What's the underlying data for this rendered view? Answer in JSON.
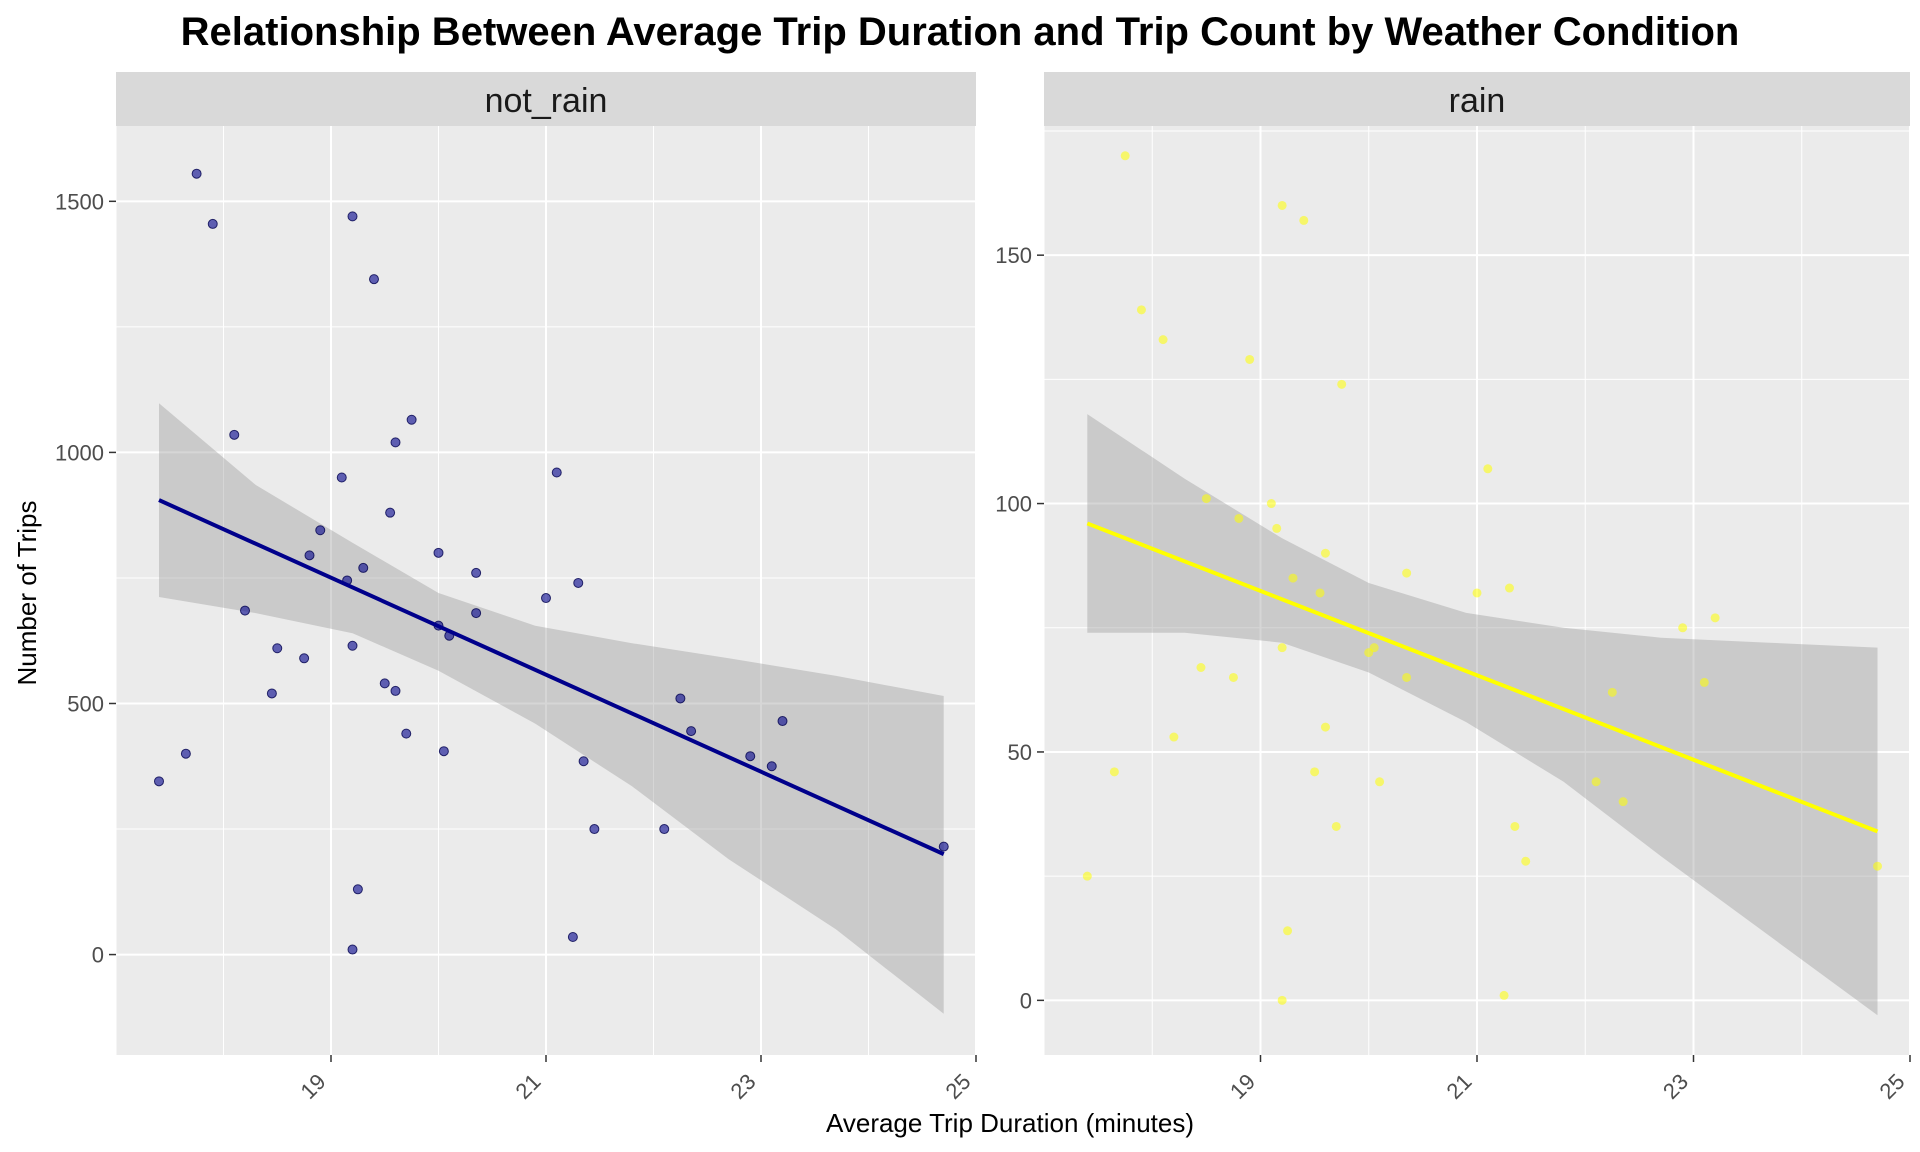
{
  "chart_data": {
    "type": "scatter",
    "title": "Relationship Between Average Trip Duration and Trip Count by Weather Condition",
    "xlabel": "Average Trip Duration (minutes)",
    "ylabel": "Number of Trips",
    "grid": true,
    "smoother": "linear fit with confidence band",
    "panels": [
      {
        "name": "not_rain",
        "color": "#00008B",
        "band_color": "#999999",
        "xlim": [
          17.0,
          25.0
        ],
        "ylim": [
          -200,
          1650
        ],
        "xticks": [
          19,
          21,
          23,
          25
        ],
        "yticks": [
          0,
          500,
          1000,
          1500
        ],
        "fit": {
          "x_start": 17.4,
          "y_start": 905,
          "x_end": 24.7,
          "y_end": 200
        },
        "band": {
          "x": [
            17.4,
            18.3,
            19.2,
            20.0,
            20.9,
            21.8,
            22.7,
            23.7,
            24.7
          ],
          "upper": [
            1098,
            935,
            820,
            720,
            655,
            620,
            590,
            555,
            515
          ],
          "lower": [
            712,
            680,
            640,
            565,
            460,
            335,
            190,
            50,
            -118
          ]
        },
        "points": [
          {
            "x": 17.4,
            "y": 345
          },
          {
            "x": 17.65,
            "y": 400
          },
          {
            "x": 17.75,
            "y": 1555
          },
          {
            "x": 17.9,
            "y": 1455
          },
          {
            "x": 18.1,
            "y": 1035
          },
          {
            "x": 18.2,
            "y": 685
          },
          {
            "x": 18.45,
            "y": 520
          },
          {
            "x": 18.5,
            "y": 610
          },
          {
            "x": 18.75,
            "y": 590
          },
          {
            "x": 18.8,
            "y": 795
          },
          {
            "x": 18.9,
            "y": 845
          },
          {
            "x": 19.1,
            "y": 950
          },
          {
            "x": 19.15,
            "y": 745
          },
          {
            "x": 19.2,
            "y": 1470
          },
          {
            "x": 19.2,
            "y": 615
          },
          {
            "x": 19.2,
            "y": 10
          },
          {
            "x": 19.25,
            "y": 130
          },
          {
            "x": 19.3,
            "y": 770
          },
          {
            "x": 19.4,
            "y": 1345
          },
          {
            "x": 19.5,
            "y": 540
          },
          {
            "x": 19.55,
            "y": 880
          },
          {
            "x": 19.6,
            "y": 1020
          },
          {
            "x": 19.6,
            "y": 525
          },
          {
            "x": 19.7,
            "y": 440
          },
          {
            "x": 19.75,
            "y": 1065
          },
          {
            "x": 20.0,
            "y": 800
          },
          {
            "x": 20.0,
            "y": 655
          },
          {
            "x": 20.05,
            "y": 405
          },
          {
            "x": 20.1,
            "y": 635
          },
          {
            "x": 20.35,
            "y": 760
          },
          {
            "x": 20.35,
            "y": 680
          },
          {
            "x": 21.0,
            "y": 710
          },
          {
            "x": 21.1,
            "y": 960
          },
          {
            "x": 21.25,
            "y": 35
          },
          {
            "x": 21.3,
            "y": 740
          },
          {
            "x": 21.35,
            "y": 385
          },
          {
            "x": 21.45,
            "y": 250
          },
          {
            "x": 22.1,
            "y": 250
          },
          {
            "x": 22.25,
            "y": 510
          },
          {
            "x": 22.35,
            "y": 445
          },
          {
            "x": 22.9,
            "y": 395
          },
          {
            "x": 23.1,
            "y": 375
          },
          {
            "x": 23.2,
            "y": 465
          },
          {
            "x": 24.7,
            "y": 215
          }
        ]
      },
      {
        "name": "rain",
        "color": "#FFFF00",
        "band_color": "#999999",
        "xlim": [
          17.0,
          25.0
        ],
        "ylim": [
          -11,
          176
        ],
        "xticks": [
          19,
          21,
          23,
          25
        ],
        "yticks": [
          0,
          50,
          100,
          150
        ],
        "fit": {
          "x_start": 17.4,
          "y_start": 96,
          "x_end": 24.7,
          "y_end": 34
        },
        "band": {
          "x": [
            17.4,
            18.3,
            19.2,
            20.0,
            20.9,
            21.8,
            22.7,
            23.7,
            24.7
          ],
          "upper": [
            118,
            105,
            93,
            84,
            78,
            75,
            73,
            72,
            71
          ],
          "lower": [
            74,
            74,
            72,
            66,
            56,
            44,
            29,
            13,
            -3
          ]
        },
        "points": [
          {
            "x": 17.4,
            "y": 25
          },
          {
            "x": 17.65,
            "y": 46
          },
          {
            "x": 17.75,
            "y": 170
          },
          {
            "x": 17.9,
            "y": 139
          },
          {
            "x": 18.1,
            "y": 133
          },
          {
            "x": 18.2,
            "y": 53
          },
          {
            "x": 18.45,
            "y": 67
          },
          {
            "x": 18.5,
            "y": 101
          },
          {
            "x": 18.75,
            "y": 65
          },
          {
            "x": 18.8,
            "y": 97
          },
          {
            "x": 18.9,
            "y": 129
          },
          {
            "x": 19.1,
            "y": 100
          },
          {
            "x": 19.15,
            "y": 95
          },
          {
            "x": 19.2,
            "y": 160
          },
          {
            "x": 19.2,
            "y": 71
          },
          {
            "x": 19.2,
            "y": 0
          },
          {
            "x": 19.25,
            "y": 14
          },
          {
            "x": 19.3,
            "y": 85
          },
          {
            "x": 19.4,
            "y": 157
          },
          {
            "x": 19.5,
            "y": 46
          },
          {
            "x": 19.55,
            "y": 82
          },
          {
            "x": 19.6,
            "y": 90
          },
          {
            "x": 19.6,
            "y": 55
          },
          {
            "x": 19.7,
            "y": 35
          },
          {
            "x": 19.75,
            "y": 124
          },
          {
            "x": 20.0,
            "y": 70
          },
          {
            "x": 20.05,
            "y": 71
          },
          {
            "x": 20.1,
            "y": 44
          },
          {
            "x": 20.35,
            "y": 86
          },
          {
            "x": 20.35,
            "y": 65
          },
          {
            "x": 21.0,
            "y": 82
          },
          {
            "x": 21.1,
            "y": 107
          },
          {
            "x": 21.25,
            "y": 1
          },
          {
            "x": 21.3,
            "y": 83
          },
          {
            "x": 21.35,
            "y": 35
          },
          {
            "x": 21.45,
            "y": 28
          },
          {
            "x": 22.1,
            "y": 44
          },
          {
            "x": 22.25,
            "y": 62
          },
          {
            "x": 22.35,
            "y": 40
          },
          {
            "x": 22.9,
            "y": 75
          },
          {
            "x": 23.1,
            "y": 64
          },
          {
            "x": 23.2,
            "y": 77
          },
          {
            "x": 24.7,
            "y": 27
          }
        ]
      }
    ]
  }
}
